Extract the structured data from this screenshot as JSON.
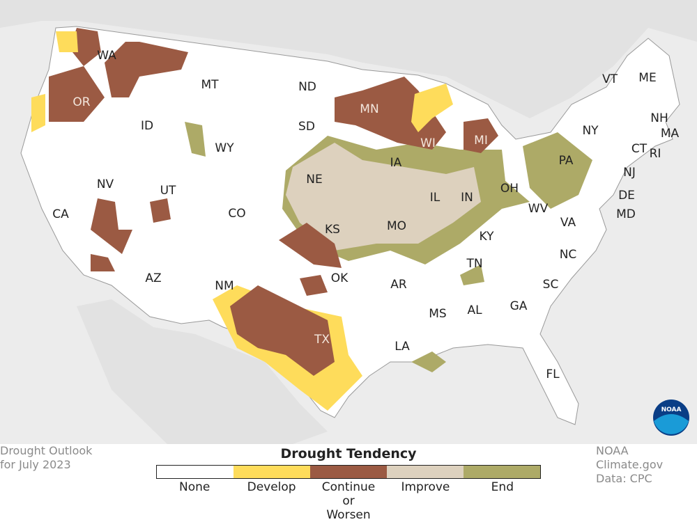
{
  "map": {
    "states": [
      "WA",
      "OR",
      "CA",
      "NV",
      "ID",
      "MT",
      "WY",
      "UT",
      "CO",
      "AZ",
      "NM",
      "ND",
      "SD",
      "NE",
      "KS",
      "OK",
      "TX",
      "MN",
      "IA",
      "MO",
      "AR",
      "LA",
      "WI",
      "IL",
      "MS",
      "MI",
      "IN",
      "OH",
      "KY",
      "TN",
      "AL",
      "GA",
      "FL",
      "SC",
      "NC",
      "VA",
      "WV",
      "PA",
      "NY",
      "VT",
      "ME",
      "NH",
      "MA",
      "RI",
      "CT",
      "NJ",
      "DE",
      "MD"
    ],
    "logo": "NOAA"
  },
  "legend": {
    "title": "Drought Tendency",
    "items": [
      {
        "label": "None",
        "color": "#ffffff"
      },
      {
        "label": "Develop",
        "color": "#fedc5b"
      },
      {
        "label": "Continue or Worsen",
        "color": "#9b5a43"
      },
      {
        "label": "Improve",
        "color": "#ddd1be"
      },
      {
        "label": "End",
        "color": "#adaa67"
      }
    ]
  },
  "caption": {
    "lines": [
      "Drought Outlook",
      "for July 2023"
    ]
  },
  "credit": {
    "lines": [
      "NOAA Climate.gov",
      "Data: CPC"
    ]
  }
}
